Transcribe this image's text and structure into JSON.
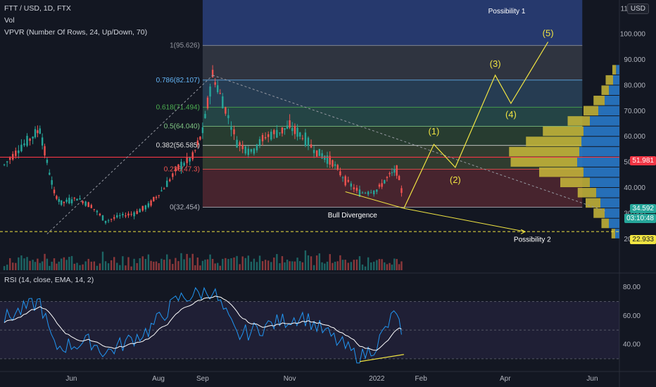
{
  "header": {
    "symbol": "FTT / USD, 1D, FTX",
    "vol": "Vol",
    "vpvr": "VPVR (Number Of Rows, 24, Up/Down, 70)",
    "rsi": "RSI (14, close, EMA, 14, 2)",
    "currency_button": "USD"
  },
  "price_axis": {
    "ticks": [
      "110.000",
      "100.000",
      "90.000",
      "80.000",
      "70.000",
      "60.000",
      "50.000",
      "40.000",
      "30.000",
      "20.000"
    ]
  },
  "rsi_axis": {
    "ticks": [
      "80.00",
      "60.00",
      "40.00"
    ]
  },
  "time_axis": {
    "ticks": [
      "Jun",
      "Aug",
      "Sep",
      "Nov",
      "2022",
      "Feb",
      "Apr",
      "Jun"
    ]
  },
  "price_tags": {
    "resistance": "51.981",
    "last_price": "34.592",
    "countdown": "03:10:48",
    "support": "22.933"
  },
  "colors": {
    "background": "#131722",
    "candle_up": "#26a69a",
    "candle_down": "#ef5350",
    "resistance_line": "#f23645",
    "support_line": "#f0e442",
    "wave": "#f0e442",
    "rsi_line": "#2196f3",
    "rsi_ema": "#ffffff",
    "vpvr_up": "#2979c9",
    "vpvr_down": "#c9b93a"
  },
  "fib_levels": [
    {
      "label": "1(95.626)",
      "value": 95.626,
      "color": "#9598a1"
    },
    {
      "label": "0.786(82.107)",
      "value": 82.107,
      "color": "#64b5f6"
    },
    {
      "label": "0.618(71.494)",
      "value": 71.494,
      "color": "#4caf50"
    },
    {
      "label": "0.5(64.040)",
      "value": 64.04,
      "color": "#81c784"
    },
    {
      "label": "0.382(56.585)",
      "value": 56.585,
      "color": "#e0e0e0"
    },
    {
      "label": "0.236(47.3)",
      "value": 47.3,
      "color": "#ef5350"
    },
    {
      "label": "0(32.454)",
      "value": 32.454,
      "color": "#b2b5be"
    }
  ],
  "annotations": {
    "possibility1": "Possibility 1",
    "possibility2": "Possibility 2",
    "bull_divergence": "Bull Divergence",
    "waves": [
      "(1)",
      "(2)",
      "(3)",
      "(4)",
      "(5)"
    ]
  },
  "chart_data": {
    "type": "candlestick",
    "title": "FTT / USD, 1D, FTX",
    "ylim": [
      15,
      112
    ],
    "x_range": [
      "2021-04",
      "2022-06"
    ],
    "price_path": [
      {
        "x": "2021-04-15",
        "y": 49
      },
      {
        "x": "2021-04-25",
        "y": 55
      },
      {
        "x": "2021-05-05",
        "y": 60
      },
      {
        "x": "2021-05-10",
        "y": 63
      },
      {
        "x": "2021-05-15",
        "y": 50
      },
      {
        "x": "2021-05-20",
        "y": 38
      },
      {
        "x": "2021-05-25",
        "y": 34
      },
      {
        "x": "2021-06-05",
        "y": 36
      },
      {
        "x": "2021-06-15",
        "y": 33
      },
      {
        "x": "2021-06-25",
        "y": 27
      },
      {
        "x": "2021-07-05",
        "y": 29
      },
      {
        "x": "2021-07-15",
        "y": 30
      },
      {
        "x": "2021-07-25",
        "y": 33
      },
      {
        "x": "2021-08-05",
        "y": 40
      },
      {
        "x": "2021-08-15",
        "y": 48
      },
      {
        "x": "2021-08-25",
        "y": 52
      },
      {
        "x": "2021-09-01",
        "y": 62
      },
      {
        "x": "2021-09-08",
        "y": 84
      },
      {
        "x": "2021-09-15",
        "y": 74
      },
      {
        "x": "2021-09-25",
        "y": 58
      },
      {
        "x": "2021-10-05",
        "y": 54
      },
      {
        "x": "2021-10-15",
        "y": 60
      },
      {
        "x": "2021-10-25",
        "y": 62
      },
      {
        "x": "2021-11-01",
        "y": 64
      },
      {
        "x": "2021-11-10",
        "y": 60
      },
      {
        "x": "2021-11-20",
        "y": 54
      },
      {
        "x": "2021-12-01",
        "y": 50
      },
      {
        "x": "2021-12-10",
        "y": 43
      },
      {
        "x": "2021-12-20",
        "y": 38
      },
      {
        "x": "2022-01-01",
        "y": 39
      },
      {
        "x": "2022-01-10",
        "y": 45
      },
      {
        "x": "2022-01-15",
        "y": 47
      },
      {
        "x": "2022-01-20",
        "y": 35
      }
    ],
    "volume_profile_levels": [
      {
        "price": 22,
        "up": 0.1,
        "down": 0.05
      },
      {
        "price": 26,
        "up": 0.25,
        "down": 0.1
      },
      {
        "price": 30,
        "up": 0.35,
        "down": 0.15
      },
      {
        "price": 34,
        "up": 0.45,
        "down": 0.2
      },
      {
        "price": 38,
        "up": 0.55,
        "down": 0.25
      },
      {
        "price": 42,
        "up": 0.7,
        "down": 0.4
      },
      {
        "price": 46,
        "up": 0.85,
        "down": 0.6
      },
      {
        "price": 50,
        "up": 1.0,
        "down": 0.9
      },
      {
        "price": 54,
        "up": 0.95,
        "down": 0.95
      },
      {
        "price": 58,
        "up": 0.9,
        "down": 0.75
      },
      {
        "price": 62,
        "up": 0.85,
        "down": 0.55
      },
      {
        "price": 66,
        "up": 0.7,
        "down": 0.3
      },
      {
        "price": 70,
        "up": 0.5,
        "down": 0.2
      },
      {
        "price": 74,
        "up": 0.35,
        "down": 0.15
      },
      {
        "price": 78,
        "up": 0.25,
        "down": 0.1
      },
      {
        "price": 82,
        "up": 0.15,
        "down": 0.1
      },
      {
        "price": 86,
        "up": 0.08,
        "down": 0.05
      }
    ],
    "wave_projection": [
      {
        "label": "(1)",
        "x": "2022-02-10",
        "y": 57
      },
      {
        "label": "(2)",
        "x": "2022-02-25",
        "y": 48
      },
      {
        "label": "(3)",
        "x": "2022-03-25",
        "y": 84
      },
      {
        "label": "(4)",
        "x": "2022-04-05",
        "y": 73
      },
      {
        "label": "(5)",
        "x": "2022-05-01",
        "y": 97
      }
    ],
    "rsi": {
      "ylim": [
        25,
        85
      ],
      "bands": [
        30,
        50,
        70
      ],
      "path": [
        {
          "x": "2021-04-15",
          "y": 58
        },
        {
          "x": "2021-05-10",
          "y": 70
        },
        {
          "x": "2021-05-20",
          "y": 38
        },
        {
          "x": "2021-06-15",
          "y": 42
        },
        {
          "x": "2021-06-25",
          "y": 34
        },
        {
          "x": "2021-07-25",
          "y": 50
        },
        {
          "x": "2021-08-15",
          "y": 72
        },
        {
          "x": "2021-09-08",
          "y": 78
        },
        {
          "x": "2021-09-25",
          "y": 46
        },
        {
          "x": "2021-10-25",
          "y": 56
        },
        {
          "x": "2021-11-10",
          "y": 60
        },
        {
          "x": "2021-12-10",
          "y": 38
        },
        {
          "x": "2021-12-20",
          "y": 30
        },
        {
          "x": "2022-01-01",
          "y": 40
        },
        {
          "x": "2022-01-15",
          "y": 64
        },
        {
          "x": "2022-01-20",
          "y": 34
        }
      ]
    }
  }
}
